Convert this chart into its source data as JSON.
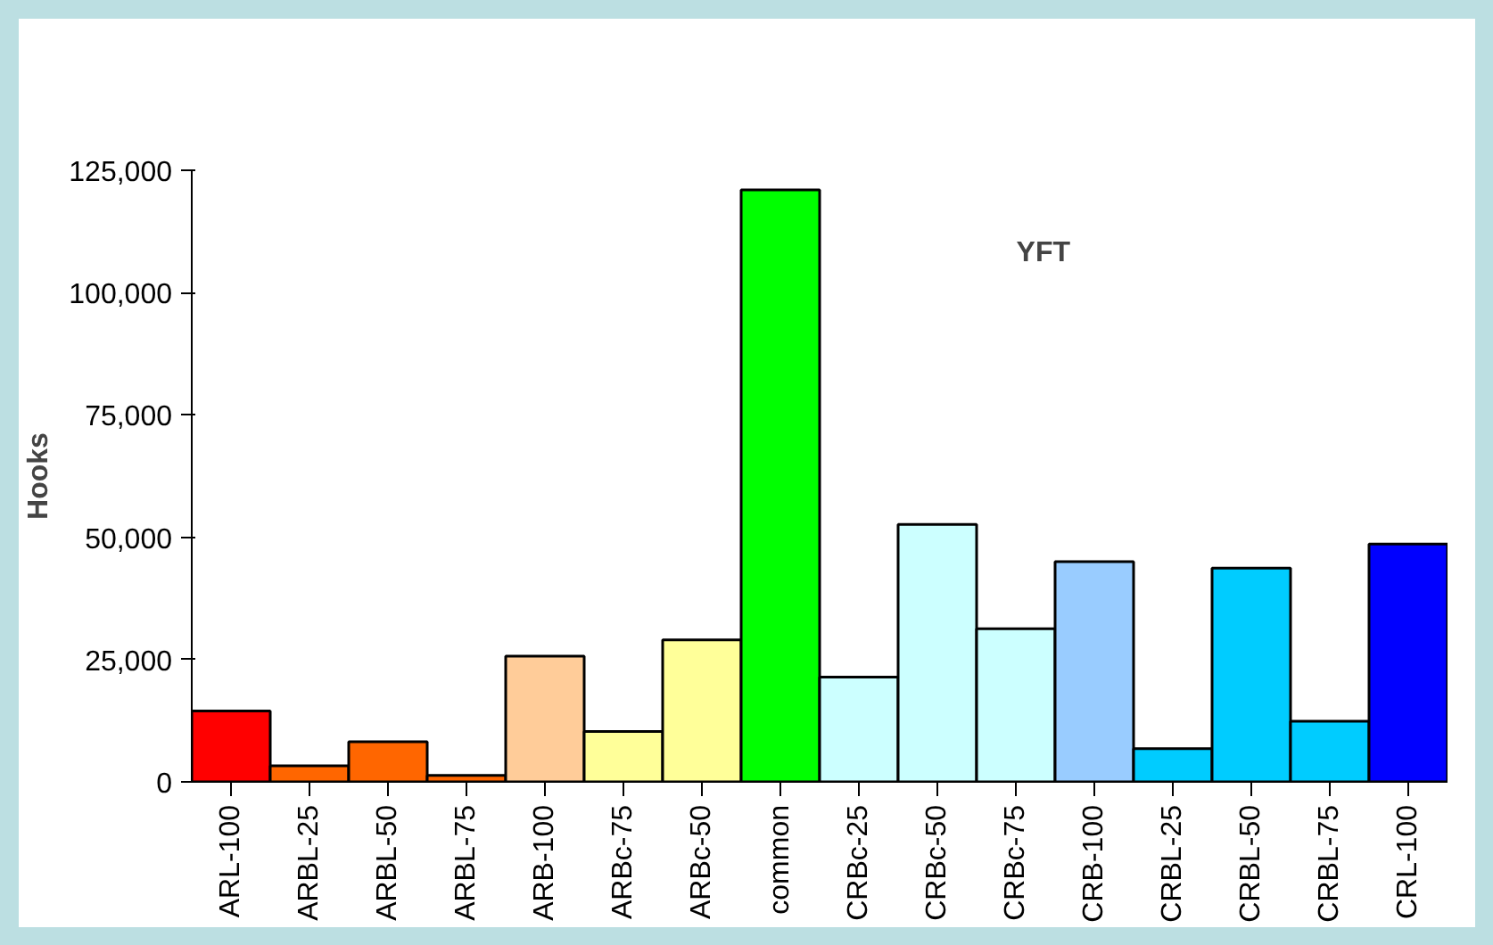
{
  "chart_data": {
    "type": "bar",
    "ylabel": "Hooks",
    "annotations": [
      "YFT"
    ],
    "categories": [
      "ARL-100",
      "ARBL-25",
      "ARBL-50",
      "ARBL-75",
      "ARB-100",
      "ARBc-75",
      "ARBc-50",
      "common",
      "CRBc-25",
      "CRBc-50",
      "CRBc-75",
      "CRB-100",
      "CRBL-25",
      "CRBL-50",
      "CRBL-75",
      "CRL-100"
    ],
    "values": [
      14500,
      3300,
      8200,
      1300,
      25700,
      10300,
      29000,
      121000,
      21400,
      52600,
      31300,
      45000,
      6800,
      43700,
      12400,
      48600
    ],
    "colors": [
      "#ff0000",
      "#ff6600",
      "#ff6600",
      "#ff6600",
      "#ffcc99",
      "#ffff99",
      "#ffff99",
      "#00ff00",
      "#ccffff",
      "#ccffff",
      "#ccffff",
      "#99ccff",
      "#00ccff",
      "#00ccff",
      "#00ccff",
      "#0000ff"
    ],
    "ylim": [
      0,
      125000
    ],
    "yticks": [
      {
        "value": 0,
        "label": "0"
      },
      {
        "value": 25000,
        "label": "25,000"
      },
      {
        "value": 50000,
        "label": "50,000"
      },
      {
        "value": 75000,
        "label": "75,000"
      },
      {
        "value": 100000,
        "label": "100,000"
      },
      {
        "value": 125000,
        "label": "125,000"
      }
    ],
    "grid": false
  }
}
